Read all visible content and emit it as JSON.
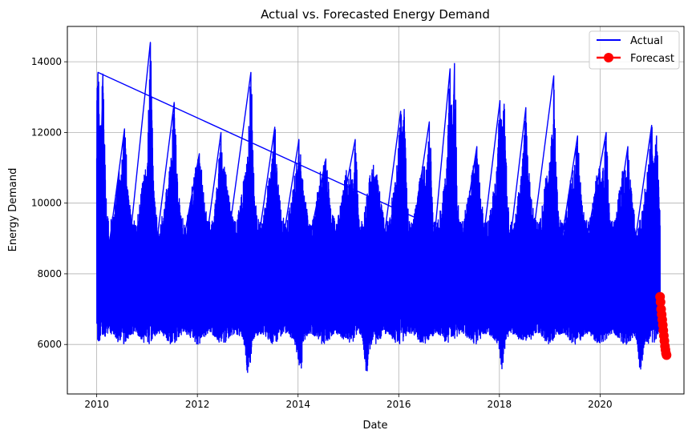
{
  "chart_data": {
    "type": "line",
    "title": "Actual vs. Forecasted Energy Demand",
    "xlabel": "Date",
    "ylabel": "Energy Demand",
    "xlim": [
      "2009-06-01",
      "2021-09-01"
    ],
    "ylim": [
      4600,
      15000
    ],
    "x_ticks": [
      "2010",
      "2012",
      "2014",
      "2016",
      "2018",
      "2020"
    ],
    "y_ticks": [
      "6000",
      "8000",
      "10000",
      "12000",
      "14000"
    ],
    "grid": true,
    "legend_position": "top-right",
    "series": [
      {
        "name": "Actual",
        "color": "#0000ff",
        "style": "line",
        "x_start": "2010-01-01",
        "x_end": "2021-03-10",
        "band_low": 6000,
        "band_high": 9500,
        "peaks": [
          {
            "x": "2010-01-10",
            "y": 13700
          },
          {
            "x": "2010-02-15",
            "y": 13650
          },
          {
            "x": "2010-07-20",
            "y": 12100
          },
          {
            "x": "2011-01-25",
            "y": 14550
          },
          {
            "x": "2011-07-15",
            "y": 12850
          },
          {
            "x": "2012-01-15",
            "y": 11400
          },
          {
            "x": "2012-06-20",
            "y": 12000
          },
          {
            "x": "2013-01-24",
            "y": 13700
          },
          {
            "x": "2013-07-15",
            "y": 12150
          },
          {
            "x": "2014-01-07",
            "y": 11800
          },
          {
            "x": "2014-07-20",
            "y": 11250
          },
          {
            "x": "2015-02-20",
            "y": 11800
          },
          {
            "x": "2015-07-25",
            "y": 10800
          },
          {
            "x": "2016-01-15",
            "y": 12600
          },
          {
            "x": "2016-02-10",
            "y": 12650
          },
          {
            "x": "2016-08-10",
            "y": 12300
          },
          {
            "x": "2017-01-08",
            "y": 13800
          },
          {
            "x": "2017-02-10",
            "y": 13950
          },
          {
            "x": "2017-07-20",
            "y": 11600
          },
          {
            "x": "2018-01-05",
            "y": 12900
          },
          {
            "x": "2018-02-05",
            "y": 12800
          },
          {
            "x": "2018-07-10",
            "y": 12700
          },
          {
            "x": "2019-01-30",
            "y": 13600
          },
          {
            "x": "2019-07-20",
            "y": 11900
          },
          {
            "x": "2020-02-15",
            "y": 12000
          },
          {
            "x": "2020-07-20",
            "y": 11600
          },
          {
            "x": "2021-01-10",
            "y": 12200
          },
          {
            "x": "2021-02-15",
            "y": 11900
          }
        ],
        "troughs": [
          {
            "x": "2013-01-05",
            "y": 5100
          },
          {
            "x": "2014-01-15",
            "y": 5150
          },
          {
            "x": "2015-05-10",
            "y": 5200
          },
          {
            "x": "2018-01-20",
            "y": 5300
          },
          {
            "x": "2020-10-20",
            "y": 5250
          }
        ]
      },
      {
        "name": "Forecast",
        "color": "#ff0000",
        "style": "line-marker",
        "points": [
          {
            "x": "2021-03-10",
            "y": 7350
          },
          {
            "x": "2021-03-14",
            "y": 7200
          },
          {
            "x": "2021-03-18",
            "y": 7000
          },
          {
            "x": "2021-03-22",
            "y": 6850
          },
          {
            "x": "2021-03-26",
            "y": 6700
          },
          {
            "x": "2021-03-30",
            "y": 6550
          },
          {
            "x": "2021-04-03",
            "y": 6400
          },
          {
            "x": "2021-04-07",
            "y": 6250
          },
          {
            "x": "2021-04-11",
            "y": 6100
          },
          {
            "x": "2021-04-15",
            "y": 5950
          },
          {
            "x": "2021-04-19",
            "y": 5850
          },
          {
            "x": "2021-04-23",
            "y": 5750
          },
          {
            "x": "2021-04-27",
            "y": 5700
          }
        ]
      }
    ]
  }
}
